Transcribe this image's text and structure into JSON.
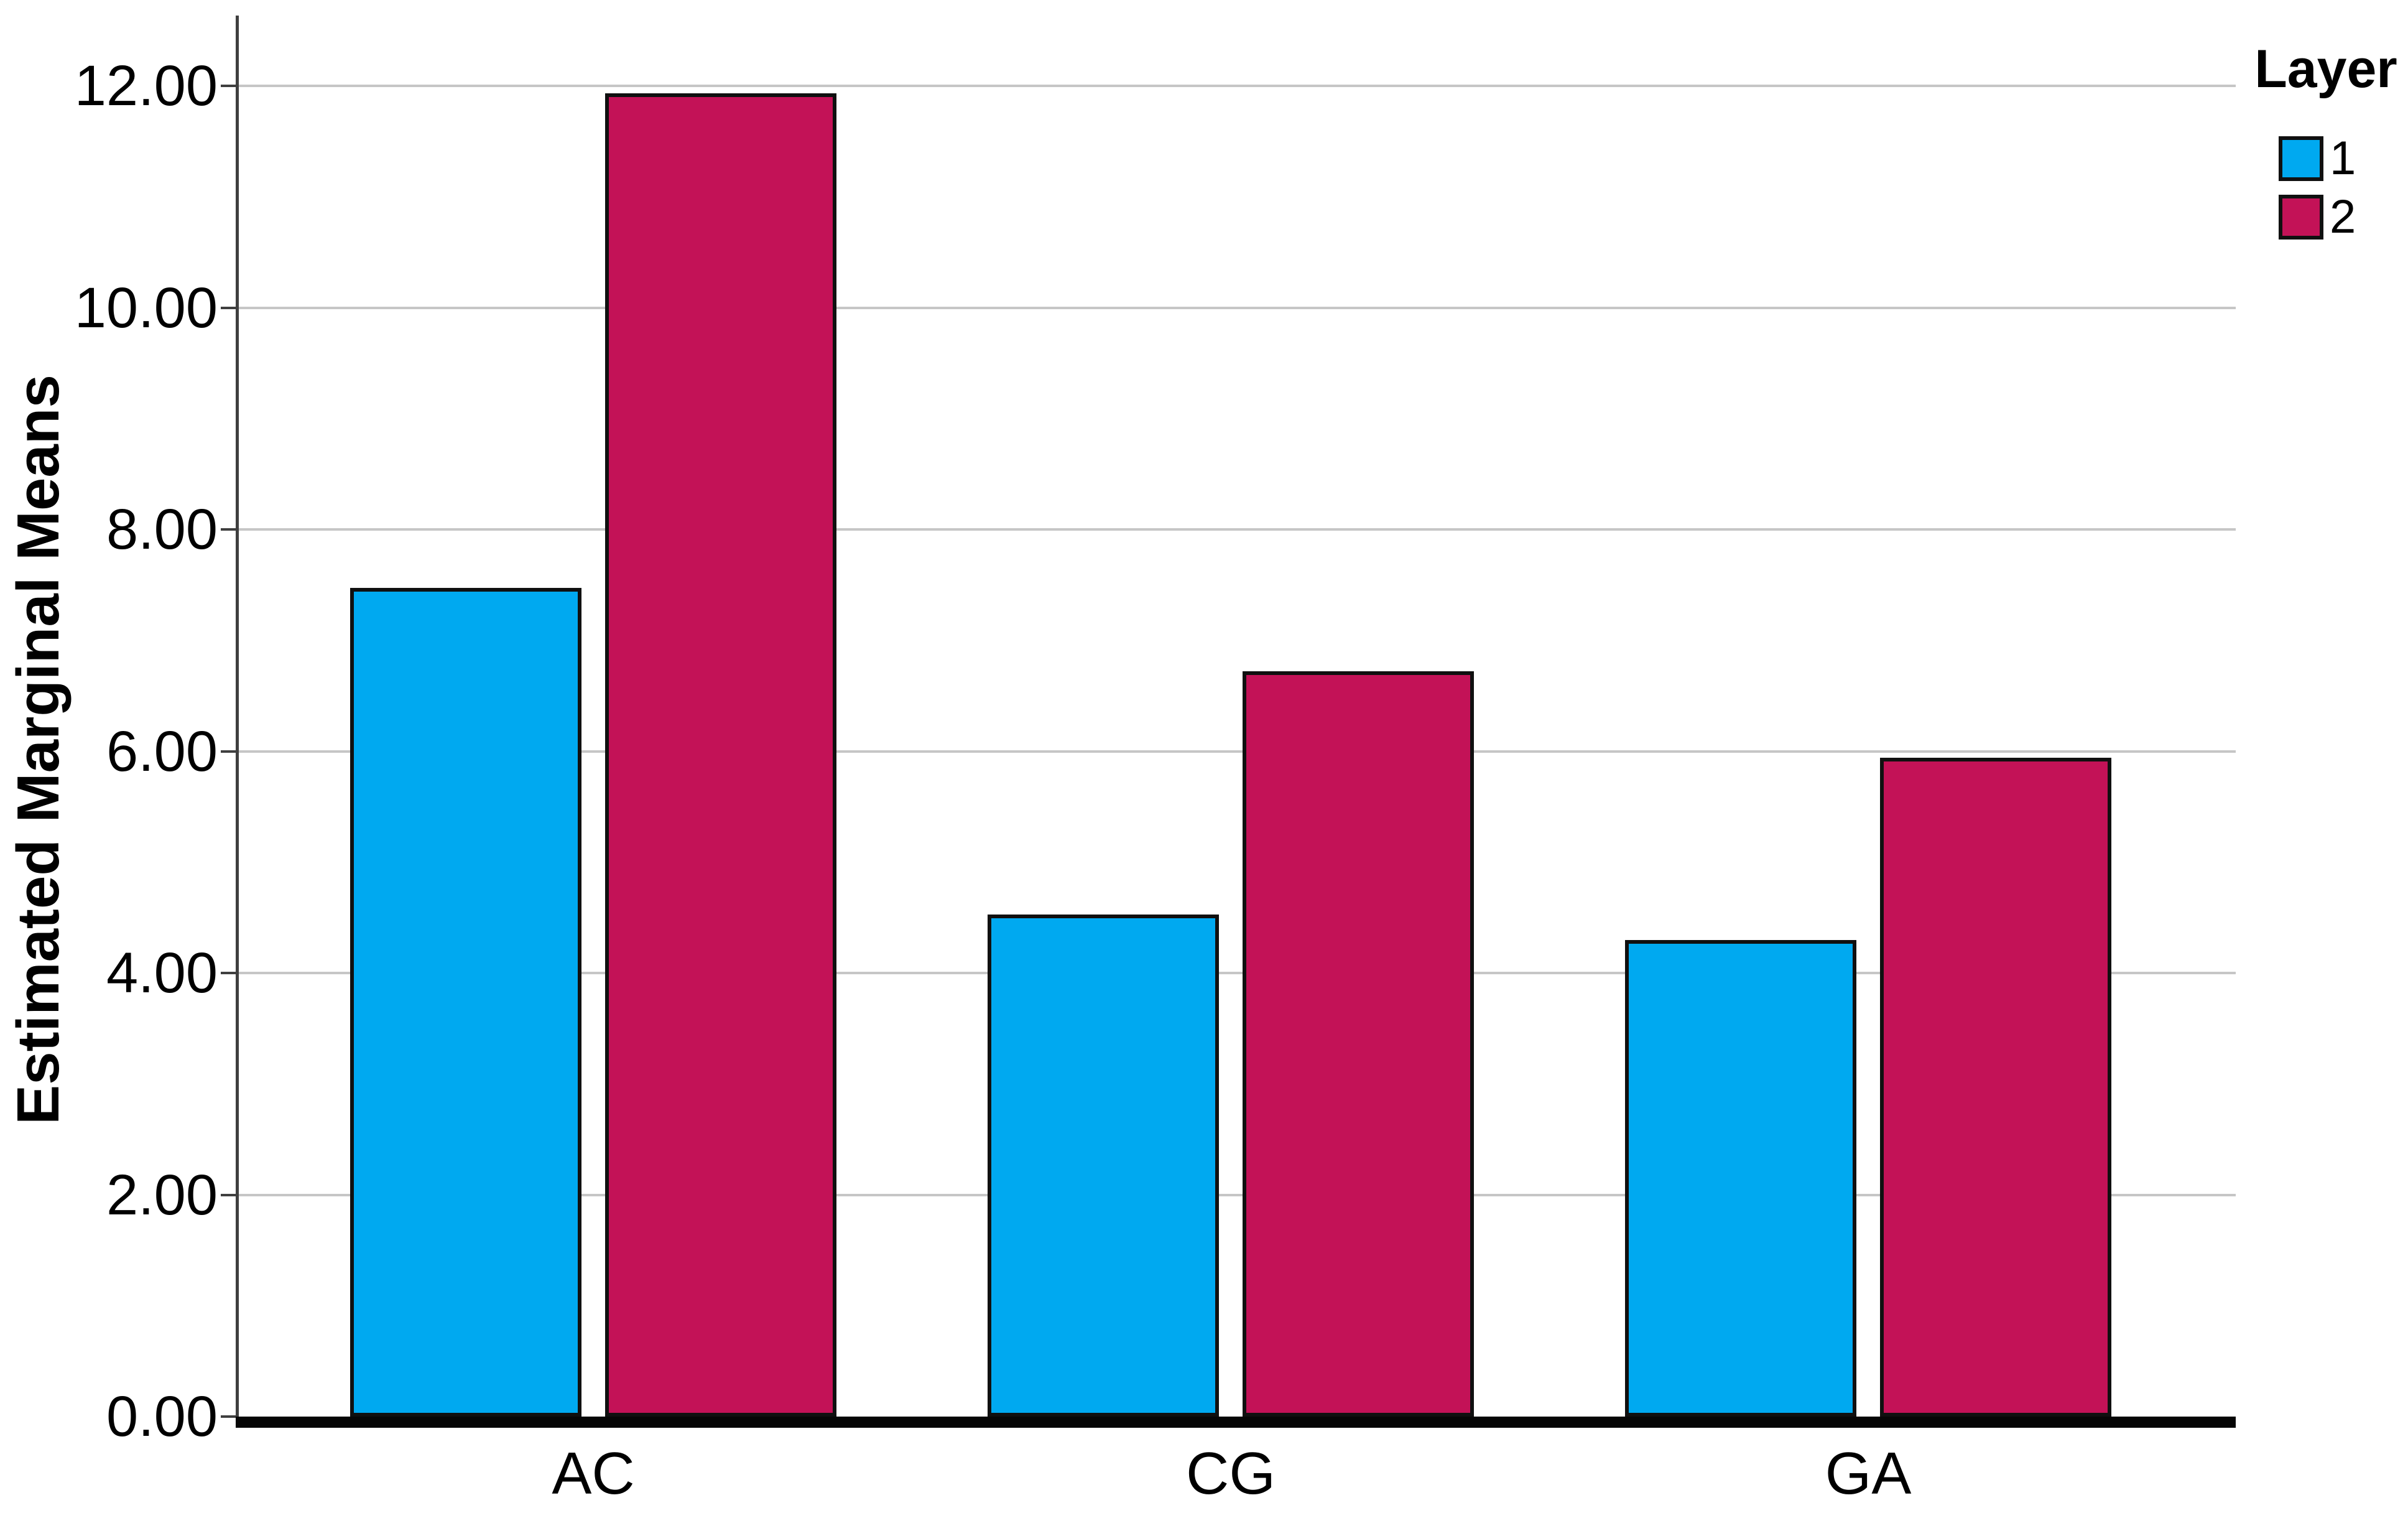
{
  "colors": {
    "background": "#ffffff",
    "gridline": "#c6c6c6",
    "axis_line": "#3f3f3f",
    "baseline": "#060606",
    "bar_border": "#101010",
    "layer1_blue": "#00a9f0",
    "layer2_red": "#c31257"
  },
  "chart_data": {
    "type": "bar",
    "title": "",
    "xlabel": "",
    "ylabel": "Estimated Marginal Means",
    "categories": [
      "AC",
      "CG",
      "GA"
    ],
    "series": [
      {
        "name": "1",
        "color": "#00a9f0",
        "values": [
          7.47,
          4.53,
          4.3
        ]
      },
      {
        "name": "2",
        "color": "#c31257",
        "values": [
          11.93,
          6.72,
          5.94
        ]
      }
    ],
    "legend": {
      "title": "Layer",
      "position": "top-right"
    },
    "ylim": [
      0,
      12.63
    ],
    "yticks": [
      {
        "value": 0,
        "label": "0.00"
      },
      {
        "value": 2,
        "label": "2.00"
      },
      {
        "value": 4,
        "label": "4.00"
      },
      {
        "value": 6,
        "label": "6.00"
      },
      {
        "value": 8,
        "label": "8.00"
      },
      {
        "value": 10,
        "label": "10.00"
      },
      {
        "value": 12,
        "label": "12.00"
      }
    ],
    "grid": "horizontal-only"
  }
}
